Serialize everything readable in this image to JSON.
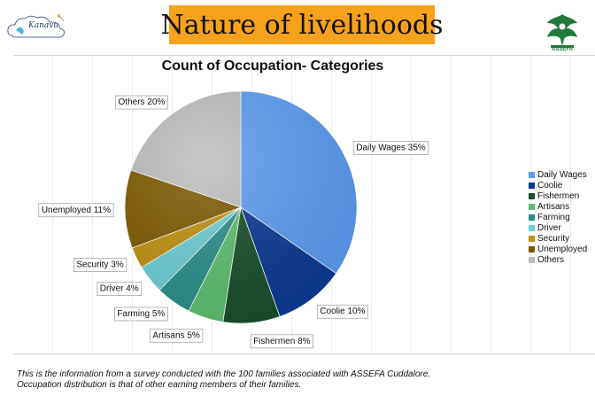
{
  "header": {
    "title": "Nature of livelihoods",
    "left_logo": {
      "icon": "kanavu-cloud-logo",
      "text": "Kanavu"
    },
    "right_logo": {
      "icon": "assefa-emblem-logo",
      "text": "ASSEFA"
    }
  },
  "chart_data": {
    "type": "pie",
    "title": "Count of Occupation- Categories",
    "legend_position": "right",
    "slices": [
      {
        "name": "Daily Wages",
        "value": 35,
        "label": "Daily Wages 35%",
        "color": "#5b9cf2"
      },
      {
        "name": "Coolie",
        "value": 10,
        "label": "Coolie 10%",
        "color": "#0a3a94"
      },
      {
        "name": "Fishermen",
        "value": 8,
        "label": "Fishermen 8%",
        "color": "#1a4f2b"
      },
      {
        "name": "Artisans",
        "value": 5,
        "label": "Artisans 5%",
        "color": "#5cbf6e"
      },
      {
        "name": "Farming",
        "value": 5,
        "label": "Farming 5%",
        "color": "#2a8f8a"
      },
      {
        "name": "Driver",
        "value": 4,
        "label": "Driver 4%",
        "color": "#6dcfd6"
      },
      {
        "name": "Security",
        "value": 3,
        "label": "Security 3%",
        "color": "#c09010"
      },
      {
        "name": "Unemployed",
        "value": 11,
        "label": "Unemployed 11%",
        "color": "#7d5a00"
      },
      {
        "name": "Others",
        "value": 20,
        "label": "Others 20%",
        "color": "#bdbdbd"
      }
    ]
  },
  "footnote": {
    "line1": "This is the information from a survey conducted with the 100 families associated with ASSEFA Cuddalore.",
    "line2": "Occupation distribution is that of other earning members of their families."
  }
}
